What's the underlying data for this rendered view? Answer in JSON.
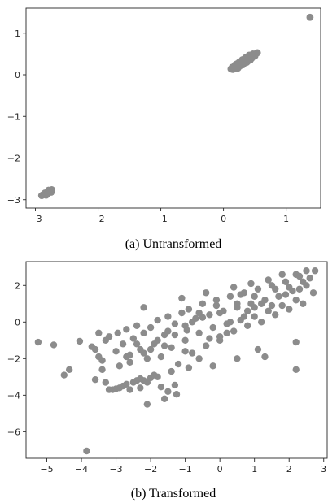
{
  "chart_data": [
    {
      "type": "scatter",
      "caption": "(a)  Untransformed",
      "title": "",
      "xlabel": "",
      "ylabel": "",
      "xlim": [
        -3.15,
        1.55
      ],
      "ylim": [
        -3.2,
        1.6
      ],
      "xticks": [
        -3,
        -2,
        -1,
        0,
        1
      ],
      "yticks": [
        -3,
        -2,
        -1,
        0,
        1
      ],
      "xtick_labels": [
        "−3",
        "−2",
        "−1",
        "0",
        "1"
      ],
      "ytick_labels": [
        "−3",
        "−2",
        "−1",
        "0",
        "1"
      ],
      "grid": false,
      "color": "#8c8c8c",
      "series": [
        {
          "points": [
            [
              -2.9,
              -2.9
            ],
            [
              -2.88,
              -2.88
            ],
            [
              -2.86,
              -2.87
            ],
            [
              -2.84,
              -2.85
            ],
            [
              -2.82,
              -2.83
            ],
            [
              -2.8,
              -2.81
            ],
            [
              -2.78,
              -2.79
            ],
            [
              -2.76,
              -2.78
            ],
            [
              -2.74,
              -2.76
            ],
            [
              -2.85,
              -2.84
            ],
            [
              -2.81,
              -2.86
            ],
            [
              -2.77,
              -2.8
            ],
            [
              -2.79,
              -2.77
            ],
            [
              -2.83,
              -2.89
            ],
            [
              -2.75,
              -2.82
            ],
            [
              0.12,
              0.14
            ],
            [
              0.15,
              0.13
            ],
            [
              0.18,
              0.15
            ],
            [
              0.2,
              0.18
            ],
            [
              0.22,
              0.2
            ],
            [
              0.24,
              0.22
            ],
            [
              0.26,
              0.25
            ],
            [
              0.28,
              0.27
            ],
            [
              0.3,
              0.29
            ],
            [
              0.32,
              0.31
            ],
            [
              0.34,
              0.33
            ],
            [
              0.36,
              0.35
            ],
            [
              0.38,
              0.37
            ],
            [
              0.4,
              0.39
            ],
            [
              0.42,
              0.41
            ],
            [
              0.44,
              0.43
            ],
            [
              0.46,
              0.45
            ],
            [
              0.48,
              0.47
            ],
            [
              0.5,
              0.49
            ],
            [
              0.52,
              0.51
            ],
            [
              0.54,
              0.53
            ],
            [
              0.25,
              0.3
            ],
            [
              0.3,
              0.36
            ],
            [
              0.35,
              0.41
            ],
            [
              0.21,
              0.26
            ],
            [
              0.17,
              0.2
            ],
            [
              0.27,
              0.22
            ],
            [
              0.33,
              0.28
            ],
            [
              0.39,
              0.33
            ],
            [
              0.45,
              0.4
            ],
            [
              0.5,
              0.45
            ],
            [
              0.23,
              0.16
            ],
            [
              0.19,
              0.24
            ],
            [
              0.14,
              0.18
            ],
            [
              0.41,
              0.47
            ],
            [
              0.29,
              0.33
            ],
            [
              0.37,
              0.3
            ],
            [
              0.43,
              0.36
            ],
            [
              0.31,
              0.24
            ],
            [
              0.47,
              0.5
            ],
            [
              1.38,
              1.38
            ]
          ]
        }
      ]
    },
    {
      "type": "scatter",
      "caption": "(b)  Transformed",
      "title": "",
      "xlabel": "",
      "ylabel": "",
      "xlim": [
        -5.6,
        3.1
      ],
      "ylim": [
        -7.45,
        3.3
      ],
      "xticks": [
        -5,
        -4,
        -3,
        -2,
        -1,
        0,
        1,
        2,
        3
      ],
      "yticks": [
        -6,
        -4,
        -2,
        0,
        2
      ],
      "xtick_labels": [
        "−5",
        "−4",
        "−3",
        "−2",
        "−1",
        "0",
        "1",
        "2",
        "3"
      ],
      "ytick_labels": [
        "−6",
        "−4",
        "−2",
        "0",
        "2"
      ],
      "grid": false,
      "color": "#8c8c8c",
      "series": [
        {
          "points": [
            [
              -5.25,
              -1.1
            ],
            [
              -4.8,
              -1.25
            ],
            [
              -4.5,
              -2.9
            ],
            [
              -4.35,
              -2.6
            ],
            [
              -4.05,
              -1.05
            ],
            [
              -3.85,
              -7.05
            ],
            [
              -3.7,
              -1.35
            ],
            [
              -3.6,
              -3.15
            ],
            [
              -3.5,
              -1.9
            ],
            [
              -3.4,
              -2.6
            ],
            [
              -3.3,
              -3.3
            ],
            [
              -3.2,
              -3.7
            ],
            [
              -3.1,
              -3.7
            ],
            [
              -3.0,
              -3.65
            ],
            [
              -2.9,
              -3.6
            ],
            [
              -2.8,
              -3.5
            ],
            [
              -2.7,
              -3.4
            ],
            [
              -2.6,
              -3.7
            ],
            [
              -2.5,
              -3.3
            ],
            [
              -2.4,
              -3.2
            ],
            [
              -2.3,
              -3.1
            ],
            [
              -2.2,
              -3.2
            ],
            [
              -2.1,
              -3.3
            ],
            [
              -2.0,
              -3.05
            ],
            [
              -1.9,
              -2.9
            ],
            [
              -1.8,
              -3.0
            ],
            [
              -2.3,
              -3.6
            ],
            [
              -2.1,
              -4.5
            ],
            [
              -1.6,
              -4.2
            ],
            [
              -1.5,
              -3.8
            ],
            [
              -1.7,
              -3.55
            ],
            [
              -1.3,
              -3.45
            ],
            [
              -3.3,
              -1.0
            ],
            [
              -3.2,
              -0.8
            ],
            [
              -3.0,
              -1.6
            ],
            [
              -2.95,
              -0.6
            ],
            [
              -2.8,
              -1.2
            ],
            [
              -2.7,
              -0.4
            ],
            [
              -2.6,
              -1.8
            ],
            [
              -2.5,
              -0.9
            ],
            [
              -2.4,
              -0.2
            ],
            [
              -2.3,
              -1.5
            ],
            [
              -2.2,
              -0.6
            ],
            [
              -2.1,
              -2.0
            ],
            [
              -2.0,
              -0.3
            ],
            [
              -1.9,
              -1.2
            ],
            [
              -1.8,
              0.1
            ],
            [
              -1.7,
              -1.9
            ],
            [
              -1.6,
              -0.7
            ],
            [
              -1.5,
              0.3
            ],
            [
              -1.4,
              -1.4
            ],
            [
              -1.3,
              -0.1
            ],
            [
              -1.2,
              -2.3
            ],
            [
              -1.1,
              0.5
            ],
            [
              -1.0,
              -1.0
            ],
            [
              -0.9,
              0.7
            ],
            [
              -0.8,
              -1.7
            ],
            [
              -0.7,
              0.2
            ],
            [
              -0.6,
              -0.6
            ],
            [
              -0.5,
              1.0
            ],
            [
              -0.4,
              -1.3
            ],
            [
              -0.3,
              0.4
            ],
            [
              -0.2,
              -0.3
            ],
            [
              -0.1,
              1.2
            ],
            [
              0.0,
              -0.8
            ],
            [
              0.1,
              0.6
            ],
            [
              0.2,
              -0.1
            ],
            [
              0.3,
              1.4
            ],
            [
              0.4,
              -0.5
            ],
            [
              0.5,
              0.8
            ],
            [
              0.6,
              0.1
            ],
            [
              0.7,
              1.6
            ],
            [
              0.8,
              -0.2
            ],
            [
              0.9,
              1.0
            ],
            [
              1.0,
              0.3
            ],
            [
              1.1,
              1.8
            ],
            [
              1.2,
              0.0
            ],
            [
              1.3,
              1.2
            ],
            [
              1.4,
              0.6
            ],
            [
              1.5,
              2.0
            ],
            [
              1.6,
              0.4
            ],
            [
              1.7,
              1.4
            ],
            [
              1.8,
              0.9
            ],
            [
              1.9,
              2.2
            ],
            [
              2.0,
              0.7
            ],
            [
              2.1,
              1.7
            ],
            [
              2.2,
              1.2
            ],
            [
              2.3,
              2.5
            ],
            [
              2.4,
              1.0
            ],
            [
              2.5,
              2.0
            ],
            [
              2.6,
              2.4
            ],
            [
              2.7,
              1.6
            ],
            [
              2.75,
              2.8
            ],
            [
              2.5,
              2.8
            ],
            [
              2.2,
              2.6
            ],
            [
              2.3,
              1.8
            ],
            [
              1.8,
              2.6
            ],
            [
              1.4,
              2.3
            ],
            [
              0.9,
              2.1
            ],
            [
              0.4,
              1.9
            ],
            [
              -0.4,
              1.6
            ],
            [
              -1.1,
              1.3
            ],
            [
              -2.2,
              0.8
            ],
            [
              -0.2,
              -2.4
            ],
            [
              0.5,
              -2.0
            ],
            [
              1.1,
              -1.5
            ],
            [
              1.3,
              -1.9
            ],
            [
              2.2,
              -1.1
            ],
            [
              2.2,
              -2.6
            ],
            [
              -1.4,
              -2.7
            ],
            [
              -1.25,
              -3.95
            ],
            [
              -0.9,
              -2.5
            ],
            [
              -0.6,
              -2.0
            ],
            [
              -0.95,
              -0.45
            ],
            [
              -0.5,
              0.25
            ],
            [
              0.0,
              0.5
            ],
            [
              0.5,
              1.0
            ],
            [
              -1.5,
              -0.5
            ],
            [
              -1.0,
              -0.2
            ],
            [
              0.0,
              -1.0
            ],
            [
              1.0,
              0.8
            ],
            [
              0.2,
              -0.6
            ],
            [
              -0.3,
              -0.9
            ],
            [
              0.7,
              0.3
            ],
            [
              1.2,
              1.0
            ],
            [
              -0.8,
              0.0
            ],
            [
              -1.8,
              -1.0
            ],
            [
              -2.4,
              -1.2
            ],
            [
              -2.6,
              -2.2
            ],
            [
              -2.9,
              -2.4
            ],
            [
              -3.5,
              -0.6
            ],
            [
              -3.6,
              -1.5
            ],
            [
              -3.4,
              -2.1
            ],
            [
              -2.0,
              -1.5
            ],
            [
              -1.0,
              -1.6
            ],
            [
              0.3,
              0.0
            ],
            [
              0.8,
              0.6
            ],
            [
              1.5,
              0.9
            ],
            [
              1.9,
              1.5
            ],
            [
              2.0,
              1.9
            ],
            [
              2.4,
              2.2
            ],
            [
              1.6,
              1.8
            ],
            [
              1.0,
              1.4
            ],
            [
              0.6,
              1.5
            ],
            [
              -0.1,
              0.9
            ],
            [
              -0.6,
              0.5
            ],
            [
              -1.3,
              -0.7
            ],
            [
              -1.6,
              -1.3
            ],
            [
              -2.2,
              -1.7
            ],
            [
              -2.7,
              -1.9
            ]
          ]
        }
      ]
    }
  ]
}
